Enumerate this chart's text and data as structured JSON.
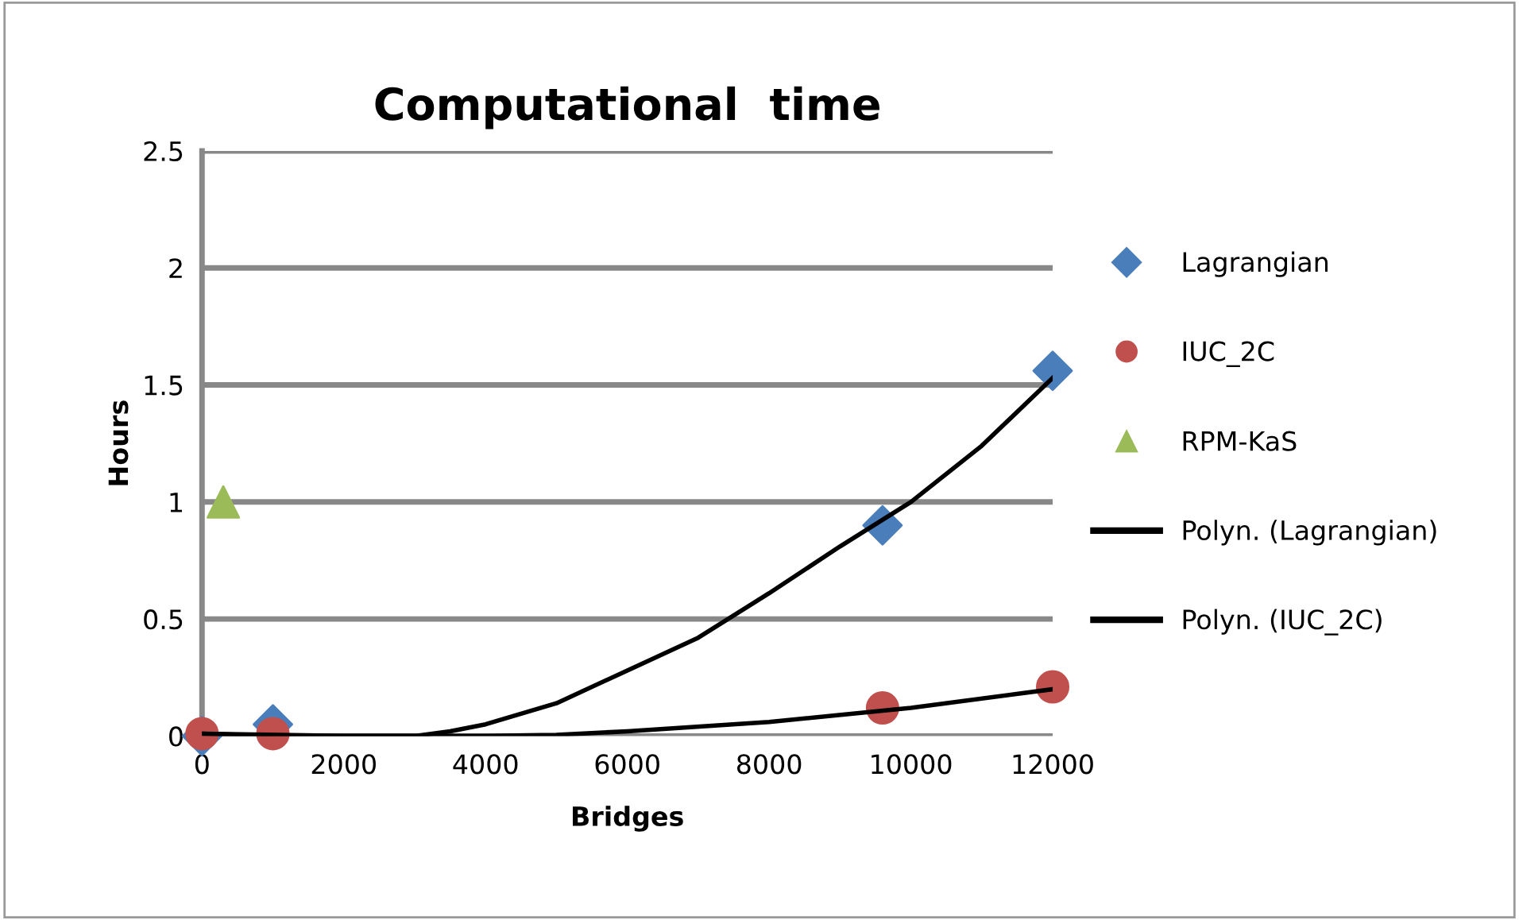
{
  "chart_data": {
    "type": "scatter",
    "title": "Computational  time",
    "xlabel": "Bridges",
    "ylabel": "Hours",
    "xlim": [
      0,
      12000
    ],
    "xticks": [
      0,
      2000,
      4000,
      6000,
      8000,
      10000,
      12000
    ],
    "ylim": [
      0,
      2.5
    ],
    "yticks": [
      0,
      0.5,
      1,
      1.5,
      2,
      2.5
    ],
    "grid": "y",
    "legend": "right",
    "series": [
      {
        "name": "Lagrangian",
        "marker": "diamond",
        "color": "#4a7ebb",
        "x": [
          0,
          1000,
          9600,
          12000
        ],
        "values": [
          0,
          0.05,
          0.9,
          1.56
        ]
      },
      {
        "name": "IUC_2C",
        "marker": "circle",
        "color": "#c0504d",
        "x": [
          0,
          1000,
          9600,
          12000
        ],
        "values": [
          0.01,
          0.01,
          0.12,
          0.21
        ]
      },
      {
        "name": "RPM-KaS",
        "marker": "triangle",
        "color": "#9bbb59",
        "x": [
          300
        ],
        "values": [
          1.0
        ]
      },
      {
        "name": "Polyn. (Lagrangian)",
        "type": "line",
        "marker": "none",
        "color": "#000000",
        "x": [
          0,
          1000,
          2000,
          3000,
          3500,
          4000,
          5000,
          6000,
          7000,
          8000,
          9000,
          10000,
          11000,
          12000
        ],
        "values": [
          0.01,
          0,
          0,
          0,
          0.02,
          0.05,
          0.14,
          0.28,
          0.42,
          0.61,
          0.81,
          1.0,
          1.24,
          1.53
        ]
      },
      {
        "name": "Polyn. (IUC_2C)",
        "type": "line",
        "marker": "none",
        "color": "#000000",
        "x": [
          0,
          2000,
          4000,
          5000,
          6000,
          8000,
          10000,
          12000
        ],
        "values": [
          0.01,
          0,
          0,
          0.005,
          0.02,
          0.06,
          0.12,
          0.2
        ]
      }
    ]
  }
}
